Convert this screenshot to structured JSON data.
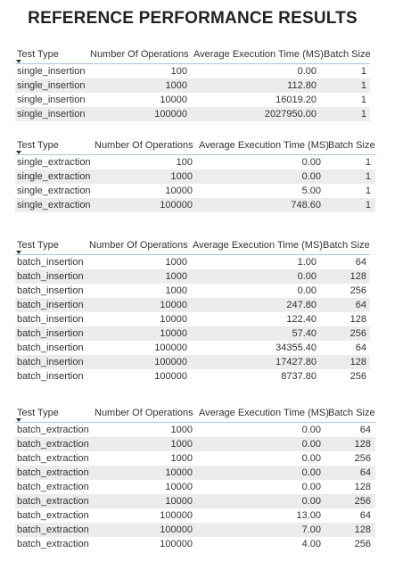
{
  "title": "REFERENCE PERFORMANCE RESULTS",
  "columns": {
    "test_type": "Test Type",
    "num_ops": "Number Of Operations",
    "avg_time": "Average Execution Time (MS)",
    "batch_size": "Batch Size"
  },
  "tables": [
    {
      "rows": [
        {
          "type": "single_insertion",
          "ops": "100",
          "time": "0.00",
          "batch": "1"
        },
        {
          "type": "single_insertion",
          "ops": "1000",
          "time": "112.80",
          "batch": "1"
        },
        {
          "type": "single_insertion",
          "ops": "10000",
          "time": "16019.20",
          "batch": "1"
        },
        {
          "type": "single_insertion",
          "ops": "100000",
          "time": "2027950.00",
          "batch": "1"
        }
      ]
    },
    {
      "rows": [
        {
          "type": "single_extraction",
          "ops": "100",
          "time": "0.00",
          "batch": "1"
        },
        {
          "type": "single_extraction",
          "ops": "1000",
          "time": "0.00",
          "batch": "1"
        },
        {
          "type": "single_extraction",
          "ops": "10000",
          "time": "5.00",
          "batch": "1"
        },
        {
          "type": "single_extraction",
          "ops": "100000",
          "time": "748.60",
          "batch": "1"
        }
      ]
    },
    {
      "rows": [
        {
          "type": "batch_insertion",
          "ops": "1000",
          "time": "1.00",
          "batch": "64"
        },
        {
          "type": "batch_insertion",
          "ops": "1000",
          "time": "0.00",
          "batch": "128"
        },
        {
          "type": "batch_insertion",
          "ops": "1000",
          "time": "0.00",
          "batch": "256"
        },
        {
          "type": "batch_insertion",
          "ops": "10000",
          "time": "247.80",
          "batch": "64"
        },
        {
          "type": "batch_insertion",
          "ops": "10000",
          "time": "122.40",
          "batch": "128"
        },
        {
          "type": "batch_insertion",
          "ops": "10000",
          "time": "57.40",
          "batch": "256"
        },
        {
          "type": "batch_insertion",
          "ops": "100000",
          "time": "34355.40",
          "batch": "64"
        },
        {
          "type": "batch_insertion",
          "ops": "100000",
          "time": "17427.80",
          "batch": "128"
        },
        {
          "type": "batch_insertion",
          "ops": "100000",
          "time": "8737.80",
          "batch": "256"
        }
      ]
    },
    {
      "rows": [
        {
          "type": "batch_extraction",
          "ops": "1000",
          "time": "0.00",
          "batch": "64"
        },
        {
          "type": "batch_extraction",
          "ops": "1000",
          "time": "0.00",
          "batch": "128"
        },
        {
          "type": "batch_extraction",
          "ops": "1000",
          "time": "0.00",
          "batch": "256"
        },
        {
          "type": "batch_extraction",
          "ops": "10000",
          "time": "0.00",
          "batch": "64"
        },
        {
          "type": "batch_extraction",
          "ops": "10000",
          "time": "0.00",
          "batch": "128"
        },
        {
          "type": "batch_extraction",
          "ops": "10000",
          "time": "0.00",
          "batch": "256"
        },
        {
          "type": "batch_extraction",
          "ops": "100000",
          "time": "13.00",
          "batch": "64"
        },
        {
          "type": "batch_extraction",
          "ops": "100000",
          "time": "7.00",
          "batch": "128"
        },
        {
          "type": "batch_extraction",
          "ops": "100000",
          "time": "4.00",
          "batch": "256"
        }
      ]
    }
  ]
}
